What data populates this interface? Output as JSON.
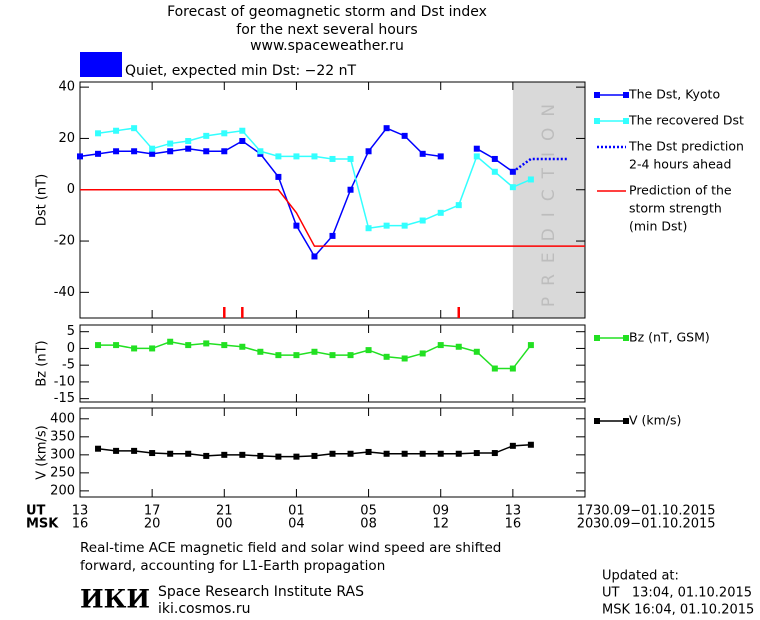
{
  "header": {
    "title_lines": [
      "Forecast of geomagnetic storm and Dst index",
      "for the next several hours",
      "www.spaceweather.ru"
    ],
    "status": {
      "color": "#0000ff",
      "text": "Quiet, expected min Dst: −22 nT"
    }
  },
  "chart_data": [
    {
      "type": "line",
      "ylabel": "Dst (nT)",
      "xlim": [
        0,
        28
      ],
      "xticks": [
        0,
        4,
        8,
        12,
        16,
        20,
        24,
        28
      ],
      "ylim": [
        -50,
        42
      ],
      "yticks": [
        40,
        20,
        0,
        -20,
        -40
      ],
      "shade": {
        "from": 24,
        "to": 28,
        "label": "PREDICTION",
        "color": "#d9d9d9"
      },
      "storm_markers": {
        "color": "#ff0000",
        "x": [
          8,
          9,
          21
        ]
      },
      "series": [
        {
          "name": [
            "The Dst, Kyoto"
          ],
          "color": "#0000ff",
          "marker": "square",
          "dash": false,
          "x": [
            0,
            1,
            2,
            3,
            4,
            5,
            6,
            7,
            8,
            9,
            10,
            11,
            12,
            13,
            14,
            15,
            16,
            17,
            18,
            19,
            20,
            21,
            22,
            23,
            24
          ],
          "values": [
            13,
            14,
            15,
            15,
            14,
            15,
            16,
            15,
            15,
            19,
            14,
            5,
            -14,
            -26,
            -18,
            0,
            15,
            24,
            21,
            14,
            13,
            null,
            16,
            12,
            7
          ]
        },
        {
          "name": [
            "The recovered Dst"
          ],
          "color": "#33ffff",
          "marker": "square",
          "dash": false,
          "x": [
            1,
            2,
            3,
            4,
            5,
            6,
            7,
            8,
            9,
            10,
            11,
            12,
            13,
            14,
            15,
            16,
            17,
            18,
            19,
            20,
            21,
            22,
            23,
            24,
            25
          ],
          "values": [
            22,
            23,
            24,
            16,
            18,
            19,
            21,
            22,
            23,
            15,
            13,
            13,
            13,
            12,
            12,
            -15,
            -14,
            -14,
            -12,
            -9,
            -6,
            13,
            7,
            1,
            4
          ]
        },
        {
          "name": [
            "The Dst prediction",
            "2-4 hours ahead"
          ],
          "color": "#0000ff",
          "marker": null,
          "dash": true,
          "x": [
            24,
            25,
            27
          ],
          "values": [
            7,
            12,
            12
          ]
        },
        {
          "name": [
            "Prediction of the",
            "storm strength",
            "(min Dst)"
          ],
          "color": "#ff0000",
          "marker": null,
          "dash": false,
          "x": [
            0,
            11,
            12,
            13,
            28
          ],
          "values": [
            0,
            0,
            -9,
            -22,
            -22
          ]
        }
      ]
    },
    {
      "type": "line",
      "ylabel": "Bz (nT)",
      "xlim": [
        0,
        28
      ],
      "xticks": [
        0,
        4,
        8,
        12,
        16,
        20,
        24,
        28
      ],
      "ylim": [
        -16,
        7
      ],
      "yticks": [
        5,
        0,
        -5,
        -10,
        -15
      ],
      "series": [
        {
          "name": [
            "Bz (nT, GSM)"
          ],
          "color": "#22e022",
          "marker": "square",
          "dash": false,
          "x": [
            1,
            2,
            3,
            4,
            5,
            6,
            7,
            8,
            9,
            10,
            11,
            12,
            13,
            14,
            15,
            16,
            17,
            18,
            19,
            20,
            21,
            22,
            23,
            24,
            25
          ],
          "values": [
            1,
            1,
            0,
            0,
            2,
            1,
            1.5,
            1,
            0.5,
            -1,
            -2,
            -2,
            -1,
            -2,
            -2,
            -0.5,
            -2.5,
            -3,
            -1.5,
            1,
            0.5,
            -1,
            -6,
            -6,
            1
          ]
        }
      ]
    },
    {
      "type": "line",
      "ylabel": "V (km/s)",
      "xlim": [
        0,
        28
      ],
      "xticks": [
        {
          "value": 0,
          "label": "13"
        },
        {
          "value": 4,
          "label": "17"
        },
        {
          "value": 8,
          "label": "21"
        },
        {
          "value": 12,
          "label": "01"
        },
        {
          "value": 16,
          "label": "05"
        },
        {
          "value": 20,
          "label": "09"
        },
        {
          "value": 24,
          "label": "13"
        },
        {
          "value": 28,
          "label": "17"
        }
      ],
      "msk_ticks": [
        "16",
        "20",
        "00",
        "04",
        "08",
        "12",
        "16",
        "20"
      ],
      "row_labels": [
        "UT",
        "MSK"
      ],
      "date_range": "30.09−01.10.2015",
      "ylim": [
        183,
        430
      ],
      "yticks": [
        400,
        350,
        300,
        250,
        200
      ],
      "series": [
        {
          "name": [
            "V (km/s)"
          ],
          "color": "#000000",
          "marker": "square",
          "dash": false,
          "x": [
            1,
            2,
            3,
            4,
            5,
            6,
            7,
            8,
            9,
            10,
            11,
            12,
            13,
            14,
            15,
            16,
            17,
            18,
            19,
            20,
            21,
            22,
            23,
            24,
            25
          ],
          "values": [
            317,
            311,
            311,
            305,
            303,
            303,
            297,
            300,
            300,
            297,
            295,
            295,
            297,
            303,
            303,
            308,
            303,
            303,
            303,
            303,
            303,
            305,
            305,
            325,
            328
          ]
        }
      ]
    }
  ],
  "footer": {
    "note_lines": [
      "Real-time ACE magnetic field and solar wind speed are shifted",
      "forward, accounting for L1-Earth propagation"
    ],
    "logo": "ИКИ",
    "institute": "Space Research Institute RAS",
    "site": "iki.cosmos.ru",
    "updated": [
      "Updated at:",
      "UT   13:04, 01.10.2015",
      "MSK 16:04, 01.10.2015"
    ]
  }
}
